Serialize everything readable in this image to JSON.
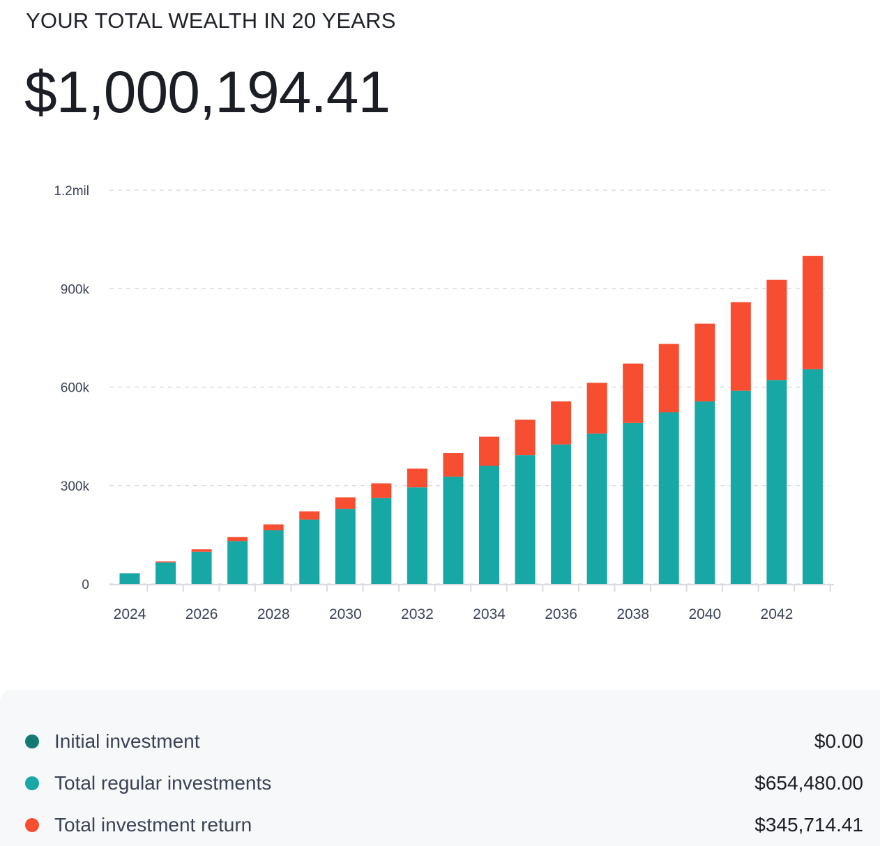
{
  "header": {
    "subtitle": "YOUR TOTAL WEALTH IN 20 YEARS",
    "total": "$1,000,194.41"
  },
  "colors": {
    "initial": "#137a72",
    "regular": "#17a8a6",
    "return": "#f74e31",
    "grid": "#d9dbe0",
    "axis_text": "#3c4359"
  },
  "chart_data": {
    "type": "bar",
    "stacked": true,
    "title": "YOUR TOTAL WEALTH IN 20 YEARS",
    "xlabel": "",
    "ylabel": "",
    "ylim": [
      0,
      1200000
    ],
    "yticks": [
      0,
      300000,
      600000,
      900000,
      1200000
    ],
    "ytick_labels": [
      "0",
      "300k",
      "600k",
      "900k",
      "1.2mil"
    ],
    "x_tick_labels": [
      "2024",
      "2026",
      "2028",
      "2030",
      "2032",
      "2034",
      "2036",
      "2038",
      "2040",
      "2042"
    ],
    "grid": true,
    "categories": [
      "2024",
      "2025",
      "2026",
      "2027",
      "2028",
      "2029",
      "2030",
      "2031",
      "2032",
      "2033",
      "2034",
      "2035",
      "2036",
      "2037",
      "2038",
      "2039",
      "2040",
      "2041",
      "2042",
      "2043"
    ],
    "series": [
      {
        "name": "Initial investment",
        "values": [
          0,
          0,
          0,
          0,
          0,
          0,
          0,
          0,
          0,
          0,
          0,
          0,
          0,
          0,
          0,
          0,
          0,
          0,
          0,
          0
        ]
      },
      {
        "name": "Total regular investments",
        "values": [
          32724,
          65448,
          98172,
          130896,
          163620,
          196344,
          229068,
          261792,
          294516,
          327240,
          359964,
          392688,
          425412,
          458136,
          490860,
          523584,
          556308,
          589032,
          621756,
          654480
        ]
      },
      {
        "name": "Total investment return",
        "values": [
          300,
          3500,
          7500,
          12000,
          18000,
          25000,
          35000,
          45000,
          57000,
          72000,
          89000,
          108000,
          131000,
          155000,
          181000,
          208000,
          237000,
          270000,
          305000,
          345714
        ]
      }
    ]
  },
  "legend": [
    {
      "label": "Initial investment",
      "value": "$0.00",
      "color": "#137a72"
    },
    {
      "label": "Total regular investments",
      "value": "$654,480.00",
      "color": "#17a8a6"
    },
    {
      "label": "Total investment return",
      "value": "$345,714.41",
      "color": "#f74e31"
    }
  ]
}
